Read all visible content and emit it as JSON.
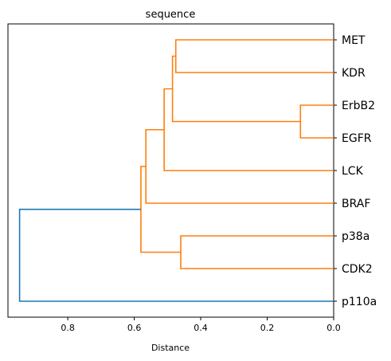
{
  "chart_data": {
    "type": "dendrogram",
    "title": "sequence",
    "xlabel": "Distance",
    "xlim": [
      0.98,
      0.0
    ],
    "xticks": [
      0.8,
      0.6,
      0.4,
      0.2,
      0.0
    ],
    "xtick_labels": [
      "0.8",
      "0.6",
      "0.4",
      "0.2",
      "0.0"
    ],
    "leaves": [
      "MET",
      "KDR",
      "ErbB2",
      "EGFR",
      "LCK",
      "BRAF",
      "p38a",
      "CDK2",
      "p110a"
    ],
    "merges": [
      {
        "left": "ErbB2",
        "right": "EGFR",
        "distance": 0.1,
        "color": "#ff7f0e"
      },
      {
        "left": "MET",
        "right": "KDR",
        "distance": 0.475,
        "color": "#ff7f0e"
      },
      {
        "left": "p38a",
        "right": "CDK2",
        "distance": 0.46,
        "color": "#ff7f0e"
      },
      {
        "left": "MET|KDR",
        "right": "ErbB2|EGFR",
        "distance": 0.485,
        "color": "#ff7f0e"
      },
      {
        "left": "MET|KDR|ErbB2|EGFR",
        "right": "LCK",
        "distance": 0.51,
        "color": "#ff7f0e"
      },
      {
        "left": "MET|KDR|ErbB2|EGFR|LCK",
        "right": "BRAF",
        "distance": 0.565,
        "color": "#ff7f0e"
      },
      {
        "left": "MET|KDR|ErbB2|EGFR|LCK|BRAF",
        "right": "p38a|CDK2",
        "distance": 0.58,
        "color": "#ff7f0e"
      },
      {
        "left": "MET|KDR|ErbB2|EGFR|LCK|BRAF|p38a|CDK2",
        "right": "p110a",
        "distance": 0.945,
        "color": "#1f77b4"
      }
    ],
    "orientation": "leaves-right",
    "grid": false
  }
}
